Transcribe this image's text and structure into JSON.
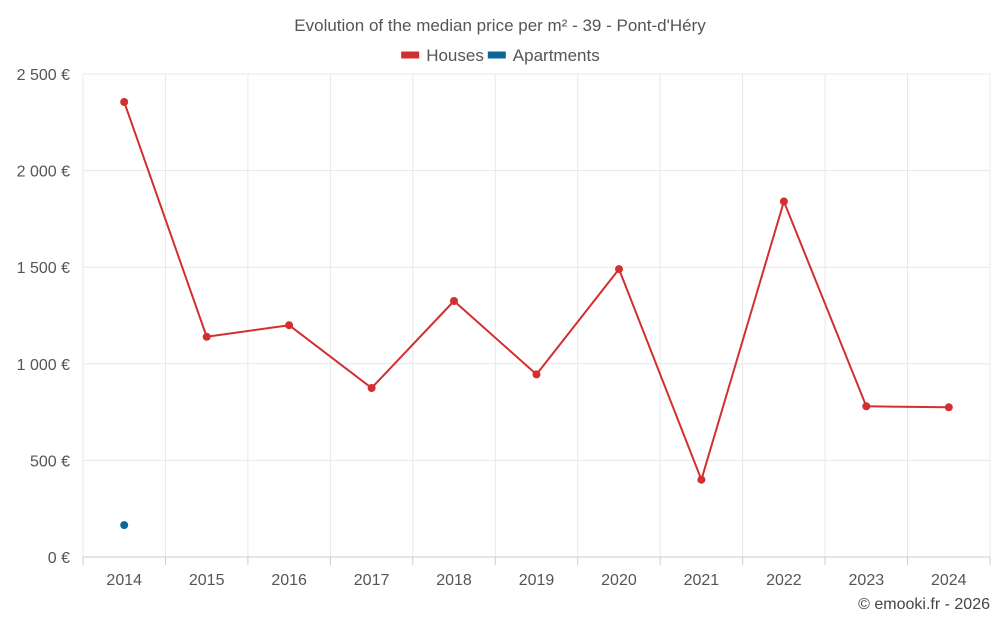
{
  "chart_data": {
    "type": "line",
    "title": "Evolution of the median price per m² - 39 - Pont-d'Héry",
    "categories": [
      "2014",
      "2015",
      "2016",
      "2017",
      "2018",
      "2019",
      "2020",
      "2021",
      "2022",
      "2023",
      "2024"
    ],
    "series": [
      {
        "name": "Houses",
        "color": "#d32f2f",
        "values": [
          2355,
          1140,
          1200,
          875,
          1325,
          945,
          1490,
          400,
          1840,
          780,
          775
        ]
      },
      {
        "name": "Apartments",
        "color": "#0a6896",
        "values": [
          165,
          null,
          null,
          null,
          null,
          null,
          null,
          null,
          null,
          null,
          null
        ]
      }
    ],
    "ylim": [
      0,
      2500
    ],
    "yticks": [
      0,
      500,
      1000,
      1500,
      2000,
      2500
    ],
    "ytick_labels": [
      "0 €",
      "500 €",
      "1 000 €",
      "1 500 €",
      "2 000 €",
      "2 500 €"
    ],
    "grid": true,
    "legend_position": "top-center"
  },
  "credit": "© emooki.fr - 2026"
}
